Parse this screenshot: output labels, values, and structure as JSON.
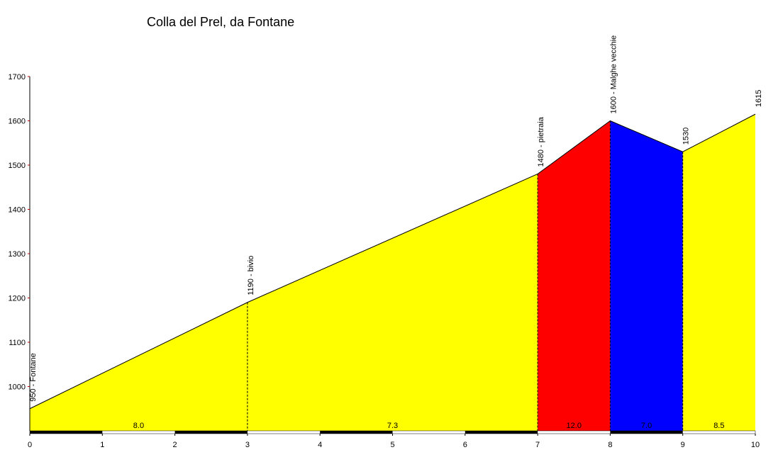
{
  "chart_data": {
    "type": "area",
    "title": "Colla del Prel, da Fontane",
    "xlabel": "",
    "ylabel": "",
    "xlim": [
      0,
      10
    ],
    "ylim": [
      900,
      1700
    ],
    "x_ticks": [
      0,
      1,
      2,
      3,
      4,
      5,
      6,
      7,
      8,
      9,
      10
    ],
    "y_ticks": [
      1000,
      1100,
      1200,
      1300,
      1400,
      1500,
      1600,
      1700
    ],
    "profile": [
      {
        "x": 0,
        "y": 950
      },
      {
        "x": 3,
        "y": 1190
      },
      {
        "x": 7,
        "y": 1480
      },
      {
        "x": 8,
        "y": 1600
      },
      {
        "x": 9,
        "y": 1530
      },
      {
        "x": 10,
        "y": 1615
      }
    ],
    "waypoints": [
      {
        "x": 0,
        "label": "950 - Fontane"
      },
      {
        "x": 3,
        "label": "1190 - bivio"
      },
      {
        "x": 7,
        "label": "1480 - pietraia"
      },
      {
        "x": 8,
        "label": "1600 - Malghe vecchie"
      },
      {
        "x": 9,
        "label": "1530"
      },
      {
        "x": 10,
        "label": "1615"
      }
    ],
    "segments": [
      {
        "from": 0,
        "to": 3,
        "gradient": "8.0",
        "color": "#ffff00"
      },
      {
        "from": 3,
        "to": 7,
        "gradient": "7.3",
        "color": "#ffff00"
      },
      {
        "from": 7,
        "to": 8,
        "gradient": "12.0",
        "color": "#ff0000"
      },
      {
        "from": 8,
        "to": 9,
        "gradient": "7.0",
        "color": "#0000ff"
      },
      {
        "from": 9,
        "to": 10,
        "gradient": "8.5",
        "color": "#ffff00"
      }
    ],
    "grid": false,
    "legend": "none"
  }
}
